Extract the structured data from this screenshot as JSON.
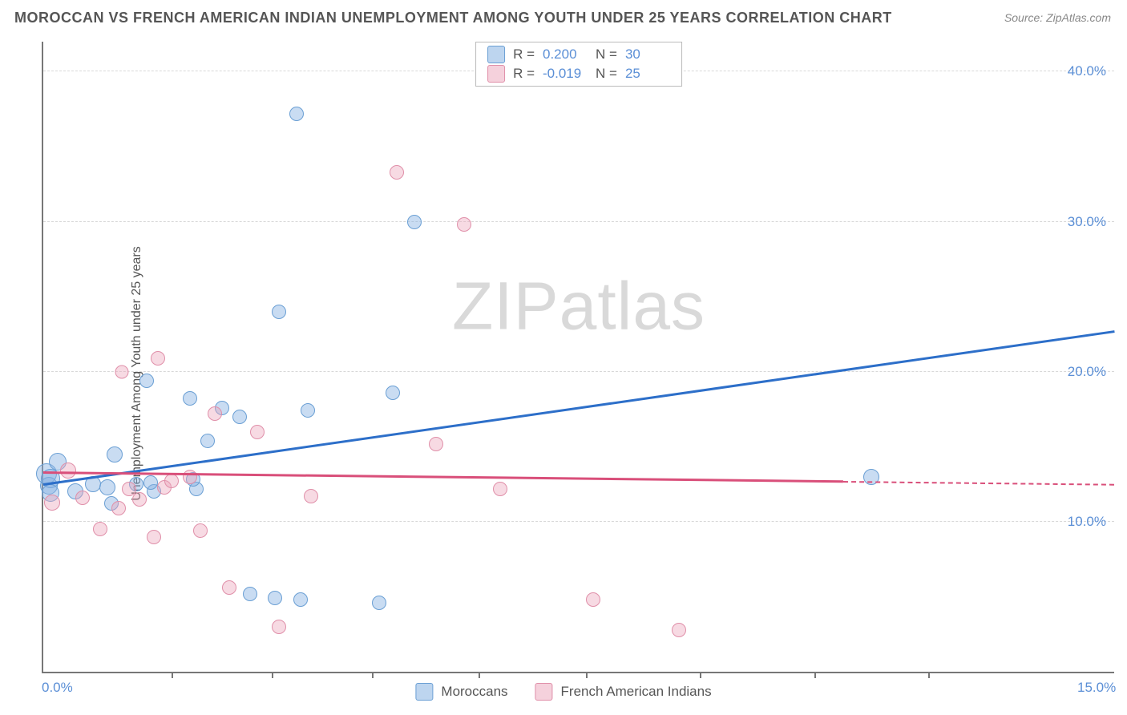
{
  "title": "MOROCCAN VS FRENCH AMERICAN INDIAN UNEMPLOYMENT AMONG YOUTH UNDER 25 YEARS CORRELATION CHART",
  "source_text": "Source: ZipAtlas.com",
  "y_axis_label": "Unemployment Among Youth under 25 years",
  "watermark_a": "ZIP",
  "watermark_b": "atlas",
  "chart": {
    "type": "scatter",
    "x_range": [
      0,
      15
    ],
    "y_range": [
      0,
      42
    ],
    "x_ticks": [
      0,
      15
    ],
    "x_tick_labels": [
      "0.0%",
      "15.0%"
    ],
    "x_minor_ticks": [
      1.8,
      3.2,
      4.6,
      6.1,
      7.6,
      9.2,
      10.8,
      12.4
    ],
    "y_ticks": [
      10,
      20,
      30,
      40
    ],
    "y_tick_labels": [
      "10.0%",
      "20.0%",
      "30.0%",
      "40.0%"
    ],
    "grid_color": "#d8d8d8",
    "axis_color": "#777777",
    "background": "#ffffff",
    "tick_label_color": "#5b8fd6"
  },
  "series": [
    {
      "name": "Moroccans",
      "fill": "rgba(135,178,226,0.45)",
      "stroke": "#6a9fd4",
      "trend_color": "#2d6fc9",
      "r_label": "R =",
      "r_value": "0.200",
      "n_label": "N =",
      "n_value": "30",
      "trend": {
        "x1": 0,
        "y1": 12.4,
        "x2": 15,
        "y2": 22.6
      },
      "points": [
        {
          "x": 0.05,
          "y": 13.2,
          "r": 13
        },
        {
          "x": 0.08,
          "y": 12.4,
          "r": 11
        },
        {
          "x": 0.1,
          "y": 12.9,
          "r": 12
        },
        {
          "x": 0.1,
          "y": 11.9,
          "r": 11
        },
        {
          "x": 0.2,
          "y": 14.0,
          "r": 11
        },
        {
          "x": 0.45,
          "y": 12.0,
          "r": 10
        },
        {
          "x": 0.7,
          "y": 12.5,
          "r": 10
        },
        {
          "x": 0.9,
          "y": 12.3,
          "r": 10
        },
        {
          "x": 0.95,
          "y": 11.2,
          "r": 9
        },
        {
          "x": 1.0,
          "y": 14.5,
          "r": 10
        },
        {
          "x": 1.3,
          "y": 12.5,
          "r": 9
        },
        {
          "x": 1.55,
          "y": 12.0,
          "r": 9
        },
        {
          "x": 1.5,
          "y": 12.6,
          "r": 9
        },
        {
          "x": 1.45,
          "y": 19.4,
          "r": 9
        },
        {
          "x": 2.05,
          "y": 18.2,
          "r": 9
        },
        {
          "x": 2.15,
          "y": 12.2,
          "r": 9
        },
        {
          "x": 2.1,
          "y": 12.8,
          "r": 9
        },
        {
          "x": 2.5,
          "y": 17.6,
          "r": 9
        },
        {
          "x": 2.3,
          "y": 15.4,
          "r": 9
        },
        {
          "x": 2.75,
          "y": 17.0,
          "r": 9
        },
        {
          "x": 2.9,
          "y": 5.2,
          "r": 9
        },
        {
          "x": 3.25,
          "y": 4.9,
          "r": 9
        },
        {
          "x": 3.3,
          "y": 24.0,
          "r": 9
        },
        {
          "x": 3.6,
          "y": 4.8,
          "r": 9
        },
        {
          "x": 3.55,
          "y": 37.2,
          "r": 9
        },
        {
          "x": 3.7,
          "y": 17.4,
          "r": 9
        },
        {
          "x": 4.7,
          "y": 4.6,
          "r": 9
        },
        {
          "x": 4.9,
          "y": 18.6,
          "r": 9
        },
        {
          "x": 5.2,
          "y": 30.0,
          "r": 9
        },
        {
          "x": 11.6,
          "y": 13.0,
          "r": 10
        }
      ]
    },
    {
      "name": "French American Indians",
      "fill": "rgba(236,163,186,0.40)",
      "stroke": "#e08fa9",
      "trend_color": "#d94f7a",
      "r_label": "R =",
      "r_value": "-0.019",
      "n_label": "N =",
      "n_value": "25",
      "trend": {
        "x1": 0,
        "y1": 13.2,
        "x2": 11.2,
        "y2": 12.6
      },
      "trend_dash": {
        "x1": 11.2,
        "y1": 12.6,
        "x2": 15,
        "y2": 12.4
      },
      "points": [
        {
          "x": 0.12,
          "y": 11.3,
          "r": 10
        },
        {
          "x": 0.35,
          "y": 13.4,
          "r": 10
        },
        {
          "x": 0.55,
          "y": 11.6,
          "r": 9
        },
        {
          "x": 0.8,
          "y": 9.5,
          "r": 9
        },
        {
          "x": 1.05,
          "y": 10.9,
          "r": 9
        },
        {
          "x": 1.1,
          "y": 20.0,
          "r": 8.5
        },
        {
          "x": 1.2,
          "y": 12.2,
          "r": 9
        },
        {
          "x": 1.35,
          "y": 11.5,
          "r": 9
        },
        {
          "x": 1.6,
          "y": 20.9,
          "r": 9
        },
        {
          "x": 1.55,
          "y": 9.0,
          "r": 9
        },
        {
          "x": 1.7,
          "y": 12.3,
          "r": 9
        },
        {
          "x": 1.8,
          "y": 12.7,
          "r": 9
        },
        {
          "x": 2.05,
          "y": 13.0,
          "r": 9
        },
        {
          "x": 2.2,
          "y": 9.4,
          "r": 9
        },
        {
          "x": 2.4,
          "y": 17.2,
          "r": 9
        },
        {
          "x": 2.6,
          "y": 5.6,
          "r": 9
        },
        {
          "x": 3.0,
          "y": 16.0,
          "r": 9
        },
        {
          "x": 3.3,
          "y": 3.0,
          "r": 9
        },
        {
          "x": 3.75,
          "y": 11.7,
          "r": 9
        },
        {
          "x": 4.95,
          "y": 33.3,
          "r": 9
        },
        {
          "x": 5.5,
          "y": 15.2,
          "r": 9
        },
        {
          "x": 5.9,
          "y": 29.8,
          "r": 9
        },
        {
          "x": 6.4,
          "y": 12.2,
          "r": 9
        },
        {
          "x": 7.7,
          "y": 4.8,
          "r": 9
        },
        {
          "x": 8.9,
          "y": 2.8,
          "r": 9
        }
      ]
    }
  ],
  "swatches": {
    "blue_fill": "rgba(135,178,226,0.55)",
    "blue_stroke": "#6a9fd4",
    "pink_fill": "rgba(236,163,186,0.50)",
    "pink_stroke": "#e08fa9"
  }
}
